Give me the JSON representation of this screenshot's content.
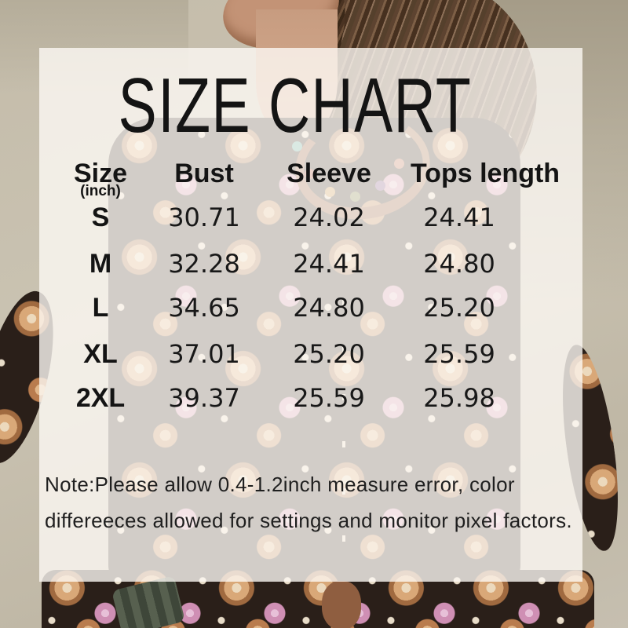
{
  "chart_data": {
    "type": "table",
    "title": "SIZE CHART",
    "unit_label": "(inch)",
    "columns": [
      "Size",
      "Bust",
      "Sleeve",
      "Tops length"
    ],
    "rows": [
      [
        "S",
        "30.71",
        "24.02",
        "24.41"
      ],
      [
        "M",
        "32.28",
        "24.41",
        "24.80"
      ],
      [
        "L",
        "34.65",
        "24.80",
        "25.20"
      ],
      [
        "XL",
        "37.01",
        "25.20",
        "25.59"
      ],
      [
        "2XL",
        "39.37",
        "25.59",
        "25.98"
      ]
    ],
    "note_lines": [
      "Note:Please allow 0.4-1.2inch measure error, color",
      "differeeces allowed for settings and monitor pixel factors."
    ]
  },
  "colors": {
    "panel": "#fcf9f4",
    "text": "#1b1b1b",
    "wall": "#c4bcaa",
    "blouse_base": "#2a1f19",
    "flower_tan": "#d9a878",
    "flower_pink": "#cf8fb4",
    "skin": "#c39376",
    "hair": "#5d4330"
  }
}
